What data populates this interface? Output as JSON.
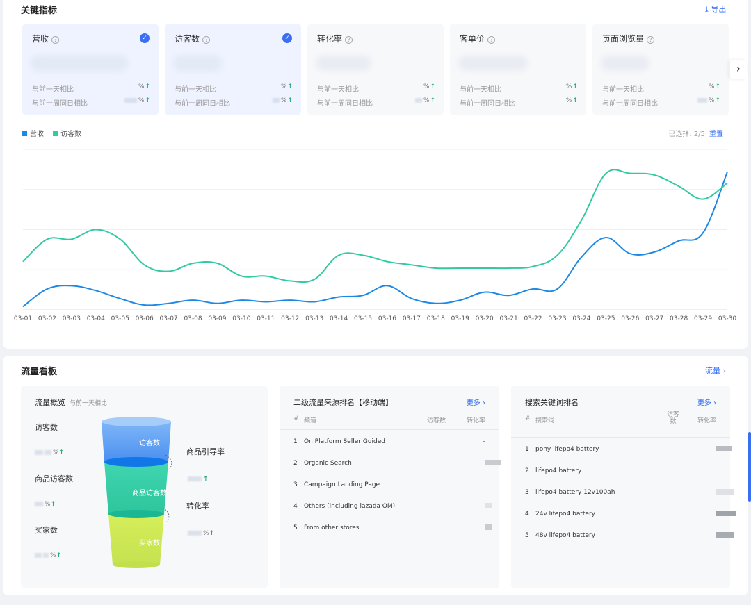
{
  "metrics": {
    "title": "关键指标",
    "export_label": "导出",
    "cards": [
      {
        "title": "营收",
        "selected": true,
        "cmp_day_label": "与前一天相比",
        "cmp_week_label": "与前一周同日相比",
        "cmp_day_suffix": "%",
        "cmp_week_suffix": "%"
      },
      {
        "title": "访客数",
        "selected": true,
        "cmp_day_label": "与前一天相比",
        "cmp_week_label": "与前一周同日相比",
        "cmp_day_suffix": "%",
        "cmp_week_suffix": "%"
      },
      {
        "title": "转化率",
        "selected": false,
        "cmp_day_label": "与前一天相比",
        "cmp_week_label": "与前一周同日相比",
        "cmp_day_suffix": "%",
        "cmp_week_suffix": "%"
      },
      {
        "title": "客单价",
        "selected": false,
        "cmp_day_label": "与前一天相比",
        "cmp_week_label": "与前一周同日相比",
        "cmp_day_suffix": "%",
        "cmp_week_suffix": "%"
      },
      {
        "title": "页面浏览量",
        "selected": false,
        "cmp_day_label": "与前一天相比",
        "cmp_week_label": "与前一周同日相比",
        "cmp_day_suffix": "%",
        "cmp_week_suffix": "%"
      }
    ],
    "selected_label": "已选择: 2/5",
    "reset_label": "重置",
    "legend": [
      {
        "name": "营收",
        "color": "#1e88e5"
      },
      {
        "name": "访客数",
        "color": "#33c9a1"
      }
    ]
  },
  "chart_data": {
    "type": "line",
    "x": [
      "03-01",
      "03-02",
      "03-03",
      "03-04",
      "03-05",
      "03-06",
      "03-07",
      "03-08",
      "03-09",
      "03-10",
      "03-11",
      "03-12",
      "03-13",
      "03-14",
      "03-15",
      "03-16",
      "03-17",
      "03-18",
      "03-19",
      "03-20",
      "03-21",
      "03-22",
      "03-23",
      "03-24",
      "03-25",
      "03-26",
      "03-27",
      "03-28",
      "03-29",
      "03-30"
    ],
    "ylim": [
      0,
      100
    ],
    "grid": true,
    "legend_position": "top-left",
    "series": [
      {
        "name": "营收",
        "color": "#1e88e5",
        "values": [
          2,
          13,
          15,
          12,
          7,
          3,
          4,
          6,
          4,
          6,
          5,
          6,
          5,
          8,
          9,
          15,
          7,
          4,
          6,
          11,
          9,
          13,
          13,
          33,
          45,
          35,
          36,
          43,
          48,
          86
        ]
      },
      {
        "name": "访客数",
        "color": "#33c9a1",
        "values": [
          30,
          44,
          44,
          50,
          44,
          28,
          24,
          29,
          29,
          21,
          21,
          18,
          19,
          34,
          34,
          30,
          28,
          26,
          26,
          26,
          26,
          27,
          34,
          56,
          85,
          85,
          84,
          77,
          69,
          79
        ]
      }
    ]
  },
  "traffic": {
    "title": "流量看板",
    "link_label": "流量",
    "overview": {
      "title": "流量概览",
      "subtitle": "与前一天相比",
      "labels": {
        "visitors": "访客数",
        "product_visitors": "商品访客数",
        "buyers": "买家数",
        "guide_rate": "商品引导率",
        "conversion": "转化率"
      },
      "funnel": {
        "top": "访客数",
        "mid": "商品访客数",
        "bottom": "买家数"
      },
      "pct_suffix": "%"
    },
    "sources": {
      "title": "二级流量来源排名【移动端】",
      "more_label": "更多",
      "headers": {
        "index": "#",
        "channel": "频道",
        "visitors": "访客数",
        "conversion": "转化率"
      },
      "rows": [
        {
          "num": "1",
          "name": "On Platform Seller Guided",
          "val": "-"
        },
        {
          "num": "2",
          "name": "Organic Search",
          "val": ""
        },
        {
          "num": "3",
          "name": "Campaign Landing Page",
          "val": ""
        },
        {
          "num": "4",
          "name": "Others (including lazada OM)",
          "val": ""
        },
        {
          "num": "5",
          "name": "From other stores",
          "val": ""
        }
      ]
    },
    "keywords": {
      "title": "搜索关键词排名",
      "more_label": "更多",
      "headers": {
        "index": "#",
        "keyword": "搜索词",
        "visitors": "访客数",
        "conversion": "转化率"
      },
      "rows": [
        {
          "num": "1",
          "name": "pony lifepo4 battery"
        },
        {
          "num": "2",
          "name": "lifepo4 battery"
        },
        {
          "num": "3",
          "name": "lifepo4 battery 12v100ah"
        },
        {
          "num": "4",
          "name": "24v lifepo4 battery"
        },
        {
          "num": "5",
          "name": "48v lifepo4 battery"
        }
      ]
    }
  }
}
